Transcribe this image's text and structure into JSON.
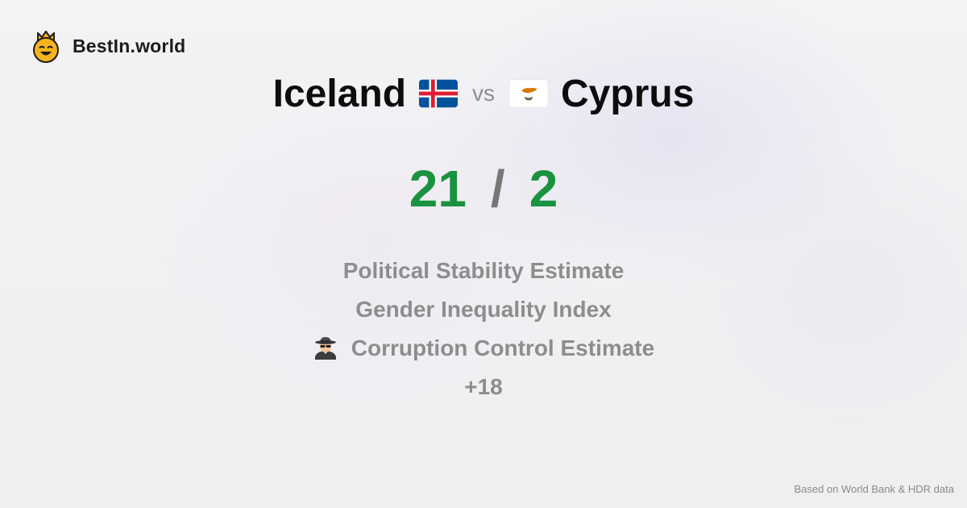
{
  "brand": {
    "name": "BestIn.world",
    "logo_icon": "crown-smiley-icon"
  },
  "comparison": {
    "left_country": "Iceland",
    "left_flag_icon": "iceland-flag-icon",
    "vs_label": "vs",
    "right_country": "Cyprus",
    "right_flag_icon": "cyprus-flag-icon"
  },
  "score": {
    "left": "21",
    "separator": "/",
    "right": "2",
    "score_color": "#1a9240"
  },
  "metrics": [
    {
      "label": "Political Stability Estimate"
    },
    {
      "label": "Gender Inequality Index"
    },
    {
      "label": "Corruption Control Estimate",
      "icon": "spy-detective-icon"
    },
    {
      "label": "+18"
    }
  ],
  "footer": {
    "source_note": "Based on World Bank & HDR data"
  }
}
